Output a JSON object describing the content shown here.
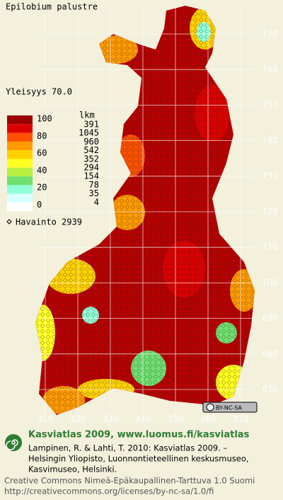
{
  "title": "Epilobium palustre",
  "frequency": "Yleisyys 70.0",
  "legend": {
    "scale_labels": [
      "100",
      "80",
      "60",
      "40",
      "20",
      "0"
    ],
    "count_header": "lkm",
    "counts": [
      "391",
      "1045",
      "960",
      "542",
      "352",
      "294",
      "154",
      "78",
      "35",
      "4"
    ],
    "colors": [
      "#9a0000",
      "#dd0000",
      "#ff5000",
      "#ff9a00",
      "#ffd200",
      "#ffff20",
      "#b8f040",
      "#70e070",
      "#90ffd8",
      "#d8ffff"
    ]
  },
  "observations": "Havainto 2939",
  "north_labels": [
    "770",
    "760",
    "750",
    "740",
    "730",
    "720",
    "710",
    "700",
    "690",
    "680",
    "670"
  ],
  "east_labels": [
    "310",
    "320",
    "330",
    "340",
    "350",
    "360",
    "370"
  ],
  "license_badge": "BY-NC-SA",
  "footer": {
    "heading": "Kasviatlas 2009, www.luomus.fi/kasviatlas",
    "citation": [
      "Lampinen, R. & Lahti, T. 2010: Kasviatlas 2009. –",
      "Helsingin Yliopisto, Luonnontieteellinen keskusmuseo,",
      "Kasvimuseo, Helsinki."
    ],
    "license": [
      "Creative Commons Nimeä-Epäkaupallinen-Tarttuva 1.0 Suomi",
      "http://creativecommons.org/licenses/by-nc-sa/1.0/fi"
    ]
  }
}
